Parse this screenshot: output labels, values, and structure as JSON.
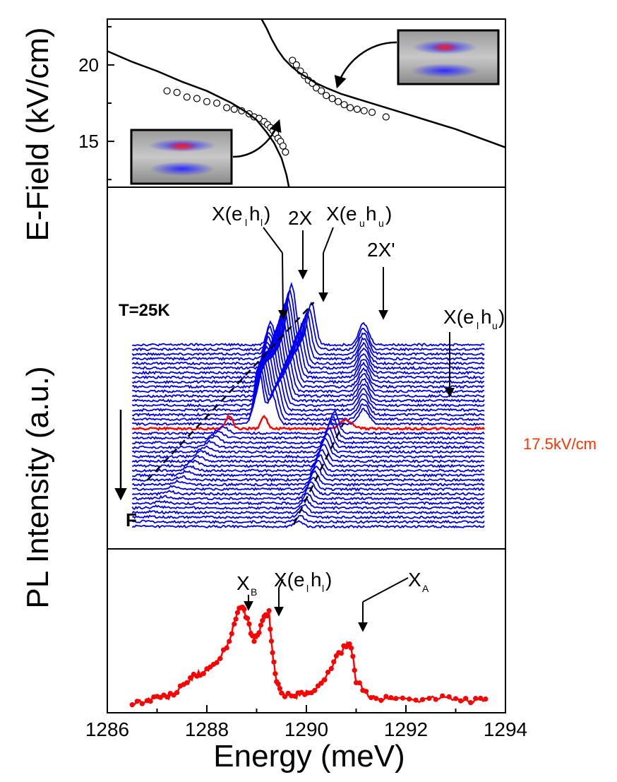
{
  "chart_data": [
    {
      "panel": "top",
      "type": "scatter",
      "ylabel": "E-Field (kV/cm)",
      "xlim": [
        1286,
        1294
      ],
      "ylim": [
        12,
        23
      ],
      "yticks": [
        15,
        20
      ],
      "yticks_minor": [
        12.5,
        17.5,
        22.5
      ],
      "series": [
        {
          "kind": "points",
          "x": [
            1287.2,
            1287.4,
            1287.6,
            1287.8,
            1288.0,
            1288.2,
            1288.4,
            1288.55,
            1288.7,
            1288.85,
            1288.95,
            1289.05,
            1289.15,
            1289.22,
            1289.28,
            1289.33,
            1289.38,
            1289.43,
            1289.48,
            1289.53,
            1289.58
          ],
          "y": [
            18.3,
            18.2,
            17.9,
            17.8,
            17.6,
            17.5,
            17.2,
            17.1,
            17.0,
            16.8,
            16.6,
            16.5,
            16.3,
            16.1,
            15.9,
            15.7,
            15.5,
            15.2,
            15.0,
            14.7,
            14.3
          ]
        },
        {
          "kind": "points",
          "x": [
            1289.72,
            1289.8,
            1289.88,
            1289.96,
            1290.04,
            1290.12,
            1290.2,
            1290.3,
            1290.4,
            1290.52,
            1290.64,
            1290.76,
            1290.88,
            1291.02,
            1291.16,
            1291.32,
            1291.6
          ],
          "y": [
            20.3,
            20.0,
            19.6,
            19.3,
            19.0,
            18.8,
            18.5,
            18.3,
            18.0,
            17.8,
            17.6,
            17.4,
            17.2,
            17.1,
            17.0,
            16.9,
            16.6
          ]
        },
        {
          "kind": "curve",
          "x": [
            1286.0,
            1286.5,
            1287.0,
            1287.5,
            1288.0,
            1288.5,
            1288.8,
            1289.0,
            1289.2,
            1289.35,
            1289.5,
            1289.6,
            1289.65
          ],
          "y": [
            20.9,
            20.2,
            19.6,
            18.9,
            18.3,
            17.5,
            16.9,
            16.4,
            15.6,
            14.9,
            13.9,
            12.8,
            12.0
          ]
        },
        {
          "kind": "curve",
          "x": [
            1289.1,
            1289.2,
            1289.3,
            1289.42,
            1289.55,
            1289.7,
            1289.85,
            1290.0,
            1290.2,
            1290.4,
            1290.7,
            1291.0,
            1291.5,
            1292.0,
            1292.5,
            1293.0,
            1293.5,
            1294.0
          ],
          "y": [
            23.0,
            22.4,
            21.7,
            21.0,
            20.4,
            19.9,
            19.5,
            19.2,
            18.8,
            18.5,
            18.1,
            17.8,
            17.3,
            16.8,
            16.3,
            15.8,
            15.2,
            14.6
          ]
        }
      ]
    },
    {
      "panel": "middle",
      "type": "line",
      "ylabel": "PL Intensity (a.u.)",
      "xlim": [
        1286,
        1294
      ],
      "annotations": [
        "X(e",
        "h",
        ")",
        "2X",
        "X(e",
        "h",
        ")",
        "2X'",
        "X(e",
        "h",
        ")",
        "T=25K",
        "17.5kV/cm",
        "F"
      ],
      "annotation_subscripts": [
        "l",
        "l",
        "u",
        "u",
        "l",
        "u"
      ],
      "series_count": 40,
      "series_color": "#0000ee",
      "highlight_series": {
        "name": "17.5kV/cm",
        "index": 18,
        "color": "#ff0000"
      },
      "peaks": {
        "X(e_l h_l)": [
          1288.6,
          1288.9,
          1289.1,
          1289.25,
          1289.35,
          1289.4
        ],
        "2X": 1289.7,
        "X(e_u h_u)": [
          1290.05,
          1290.0,
          1289.85,
          1289.6,
          1289.3,
          1288.9
        ],
        "2X'": 1291.15,
        "X(e_l h_u)": [
          1290.2,
          1290.5,
          1290.8,
          1291.0
        ]
      }
    },
    {
      "panel": "bottom",
      "type": "line",
      "xlabel": "Energy (meV)",
      "xlim": [
        1286,
        1294
      ],
      "xticks": [
        1286,
        1288,
        1290,
        1292,
        1294
      ],
      "annotations": [
        "X",
        "B",
        "X(e",
        "h",
        ")",
        "X",
        "A"
      ],
      "annotation_subscripts": [
        "l",
        "l"
      ],
      "series": [
        {
          "color": "#ff0000",
          "x": [
            1286.5,
            1286.8,
            1287.0,
            1287.2,
            1287.4,
            1287.6,
            1287.8,
            1288.0,
            1288.2,
            1288.4,
            1288.55,
            1288.65,
            1288.75,
            1288.85,
            1288.95,
            1289.05,
            1289.15,
            1289.25,
            1289.32,
            1289.4,
            1289.5,
            1289.7,
            1289.9,
            1290.1,
            1290.3,
            1290.5,
            1290.65,
            1290.8,
            1290.9,
            1291.0,
            1291.2,
            1291.5,
            1291.8,
            1292.2,
            1292.6,
            1293.0,
            1293.3,
            1293.6
          ],
          "y": [
            0.03,
            0.05,
            0.08,
            0.07,
            0.12,
            0.18,
            0.25,
            0.27,
            0.33,
            0.45,
            0.62,
            0.74,
            0.73,
            0.6,
            0.5,
            0.55,
            0.68,
            0.7,
            0.4,
            0.18,
            0.1,
            0.08,
            0.09,
            0.12,
            0.18,
            0.3,
            0.4,
            0.46,
            0.45,
            0.2,
            0.1,
            0.06,
            0.07,
            0.05,
            0.07,
            0.06,
            0.05,
            0.06
          ]
        }
      ]
    }
  ]
}
